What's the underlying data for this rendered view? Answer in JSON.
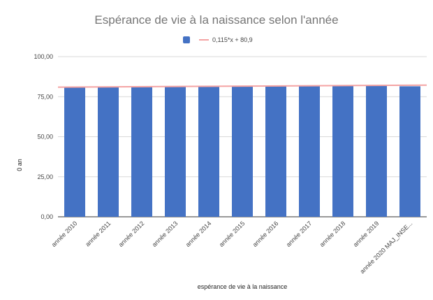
{
  "chart_data": {
    "type": "bar",
    "title": "Espérance de vie à la naissance selon l'année",
    "xlabel": "espérance de vie à la naissance",
    "ylabel": "0 an",
    "categories": [
      "année 2010",
      "année 2011",
      "année 2012",
      "année 2013",
      "année 2014",
      "année 2015",
      "année 2016",
      "année 2017",
      "année 2018",
      "année 2019",
      "année 2020 MAJ_INSE..."
    ],
    "values": [
      80.8,
      81.1,
      81.1,
      81.2,
      81.7,
      81.4,
      81.7,
      81.8,
      81.9,
      82.2,
      81.5
    ],
    "ylim": [
      0,
      100
    ],
    "yticks": [
      "0,00",
      "25,00",
      "50,00",
      "75,00",
      "100,00"
    ],
    "bar_color": "#4472c4",
    "trendline": {
      "label": "0,115*x + 80,9",
      "color": "#f4a3a3",
      "slope": 0.115,
      "intercept": 80.9
    },
    "grid": true,
    "legend_position": "top"
  }
}
